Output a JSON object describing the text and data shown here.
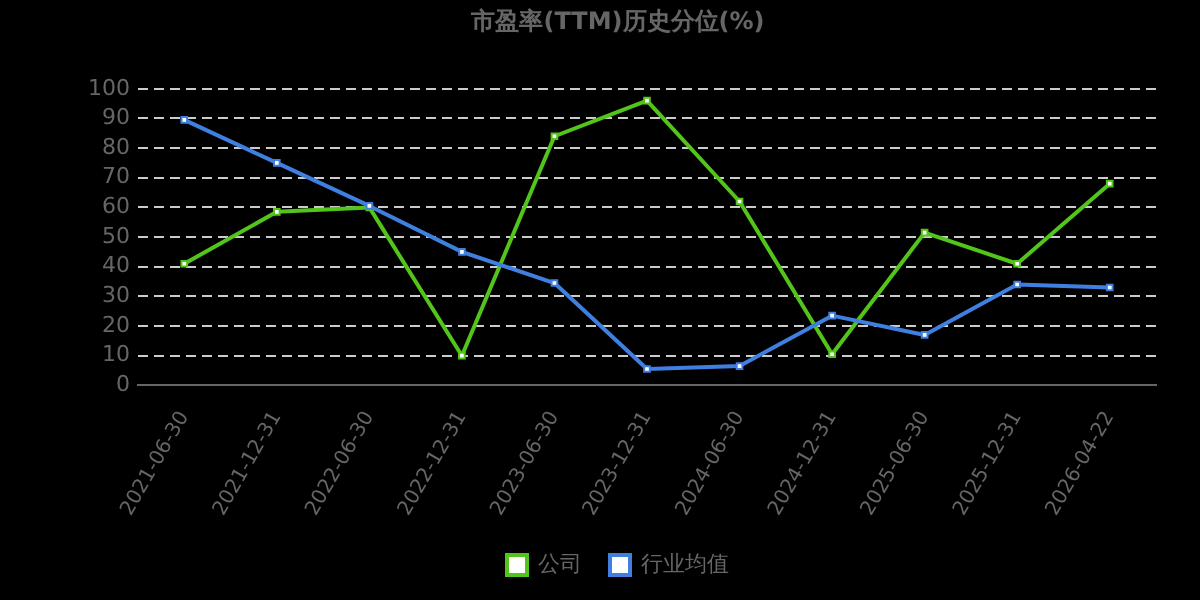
{
  "chart_data": {
    "type": "line",
    "title": "市盈率(TTM)历史分位(%)",
    "categories": [
      "2021-06-30",
      "2021-12-31",
      "2022-06-30",
      "2022-12-31",
      "2023-06-30",
      "2023-12-31",
      "2024-06-30",
      "2024-12-31",
      "2025-06-30",
      "2025-12-31",
      "2026-04-22"
    ],
    "series": [
      {
        "name": "公司",
        "color": "#52c41a",
        "values": [
          41,
          58.5,
          60,
          10,
          84,
          96,
          62,
          10.5,
          51.5,
          41,
          68
        ]
      },
      {
        "name": "行业均值",
        "color": "#3f7fe0",
        "values": [
          89.5,
          75,
          60.5,
          45,
          34.5,
          5.5,
          6.5,
          23.5,
          17,
          34,
          33
        ]
      }
    ],
    "ylim": [
      0,
      100
    ],
    "yticks": [
      0,
      10,
      20,
      30,
      40,
      50,
      60,
      70,
      80,
      90,
      100
    ],
    "grid": "y",
    "legend": "bottom",
    "marker": "square",
    "line_style": "solid"
  }
}
